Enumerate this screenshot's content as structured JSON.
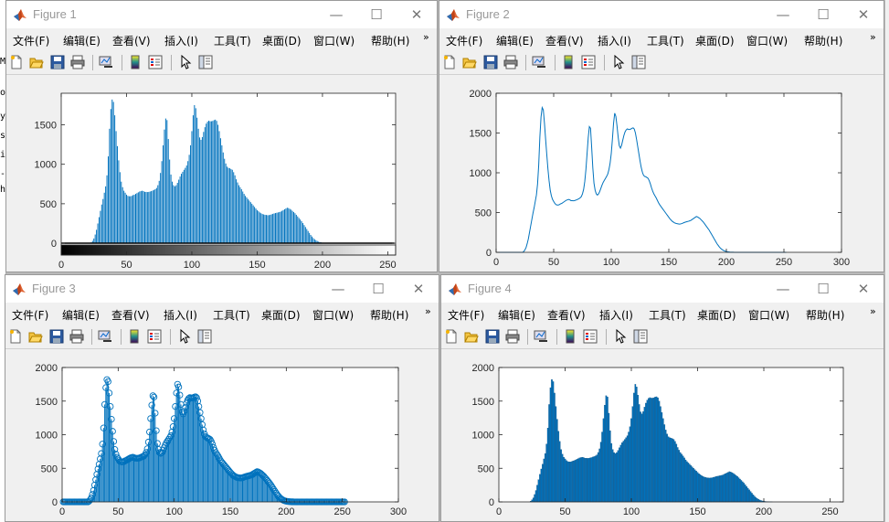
{
  "menu": [
    "文件(F)",
    "编辑(E)",
    "查看(V)",
    "插入(I)",
    "工具(T)",
    "桌面(D)",
    "窗口(W)",
    "帮助(H)"
  ],
  "menu_more": "»",
  "title_buttons": {
    "minimize": "—",
    "maximize": "☐",
    "close": "✕"
  },
  "toolbar_icons": [
    "new-figure-icon",
    "open-file-icon",
    "save-icon",
    "print-icon",
    "link-plot-icon",
    "colorbar-icon",
    "legend-icon",
    "pointer-icon",
    "property-editor-icon"
  ],
  "background_chars": [
    "M",
    "oc",
    "y",
    "st",
    "i",
    "-",
    "h"
  ],
  "colors": {
    "series": "#0072bd",
    "axes_bg": "#ffffff",
    "frame": "#f0f0f0"
  },
  "figures": [
    {
      "title": "Figure 1"
    },
    {
      "title": "Figure 2"
    },
    {
      "title": "Figure 3"
    },
    {
      "title": "Figure 4"
    }
  ],
  "chart_data": [
    {
      "type": "bar",
      "figure": "Figure 1",
      "style": "histogram-stem with grayscale colorbar",
      "title": "",
      "xlabel": "",
      "ylabel": "",
      "xlim": [
        0,
        256
      ],
      "ylim": [
        -150,
        1900
      ],
      "xticks": [
        0,
        50,
        100,
        150,
        200,
        250
      ],
      "yticks": [
        0,
        500,
        1000,
        1500
      ],
      "grayscale_bar": true
    },
    {
      "type": "line",
      "figure": "Figure 2",
      "title": "",
      "xlabel": "",
      "ylabel": "",
      "xlim": [
        0,
        300
      ],
      "ylim": [
        0,
        2000
      ],
      "xticks": [
        0,
        50,
        100,
        150,
        200,
        250,
        300
      ],
      "yticks": [
        0,
        500,
        1000,
        1500,
        2000
      ]
    },
    {
      "type": "scatter",
      "figure": "Figure 3",
      "style": "stem with circle markers",
      "title": "",
      "xlabel": "",
      "ylabel": "",
      "xlim": [
        0,
        300
      ],
      "ylim": [
        0,
        2000
      ],
      "xticks": [
        0,
        50,
        100,
        150,
        200,
        250,
        300
      ],
      "yticks": [
        0,
        500,
        1000,
        1500,
        2000
      ]
    },
    {
      "type": "bar",
      "figure": "Figure 4",
      "title": "",
      "xlabel": "",
      "ylabel": "",
      "xlim": [
        0,
        260
      ],
      "ylim": [
        0,
        2000
      ],
      "xticks": [
        0,
        50,
        100,
        150,
        200,
        250
      ],
      "yticks": [
        0,
        500,
        1000,
        1500,
        2000
      ]
    }
  ],
  "histogram": {
    "bins_start": 0,
    "counts": [
      0,
      0,
      0,
      0,
      0,
      0,
      0,
      0,
      0,
      0,
      0,
      0,
      0,
      0,
      0,
      0,
      0,
      0,
      0,
      0,
      0,
      0,
      0,
      10,
      30,
      60,
      110,
      170,
      250,
      330,
      410,
      490,
      560,
      640,
      720,
      860,
      1100,
      1450,
      1700,
      1820,
      1790,
      1620,
      1420,
      1230,
      1050,
      900,
      780,
      710,
      665,
      640,
      615,
      600,
      595,
      595,
      600,
      610,
      615,
      625,
      635,
      645,
      655,
      660,
      665,
      660,
      650,
      650,
      648,
      650,
      655,
      660,
      668,
      675,
      685,
      700,
      735,
      790,
      890,
      1040,
      1240,
      1440,
      1580,
      1560,
      1320,
      1060,
      870,
      780,
      735,
      720,
      735,
      765,
      805,
      845,
      880,
      905,
      930,
      955,
      985,
      1040,
      1120,
      1240,
      1420,
      1620,
      1750,
      1710,
      1590,
      1450,
      1340,
      1310,
      1345,
      1410,
      1470,
      1515,
      1540,
      1552,
      1545,
      1545,
      1550,
      1560,
      1565,
      1550,
      1500,
      1420,
      1330,
      1240,
      1150,
      1070,
      1010,
      970,
      955,
      950,
      940,
      930,
      900,
      860,
      810,
      770,
      735,
      710,
      685,
      655,
      625,
      600,
      580,
      560,
      540,
      520,
      500,
      480,
      460,
      440,
      420,
      405,
      390,
      380,
      370,
      365,
      360,
      358,
      355,
      356,
      360,
      366,
      372,
      378,
      382,
      386,
      390,
      395,
      400,
      410,
      420,
      430,
      440,
      450,
      445,
      435,
      425,
      410,
      395,
      380,
      360,
      340,
      320,
      300,
      280,
      255,
      230,
      205,
      180,
      155,
      130,
      105,
      85,
      65,
      50,
      38,
      28,
      20,
      14,
      10,
      7,
      5,
      3,
      2,
      1,
      1,
      0,
      0,
      0,
      0,
      0,
      0,
      0,
      0,
      0,
      0,
      0,
      0,
      0,
      0,
      0,
      0,
      0,
      0,
      0,
      0,
      0,
      0,
      0,
      0,
      0,
      0,
      0,
      0,
      0,
      0,
      0,
      0,
      0,
      0,
      0,
      0,
      0,
      0,
      0,
      0,
      0,
      0,
      0,
      0,
      0,
      0
    ]
  }
}
